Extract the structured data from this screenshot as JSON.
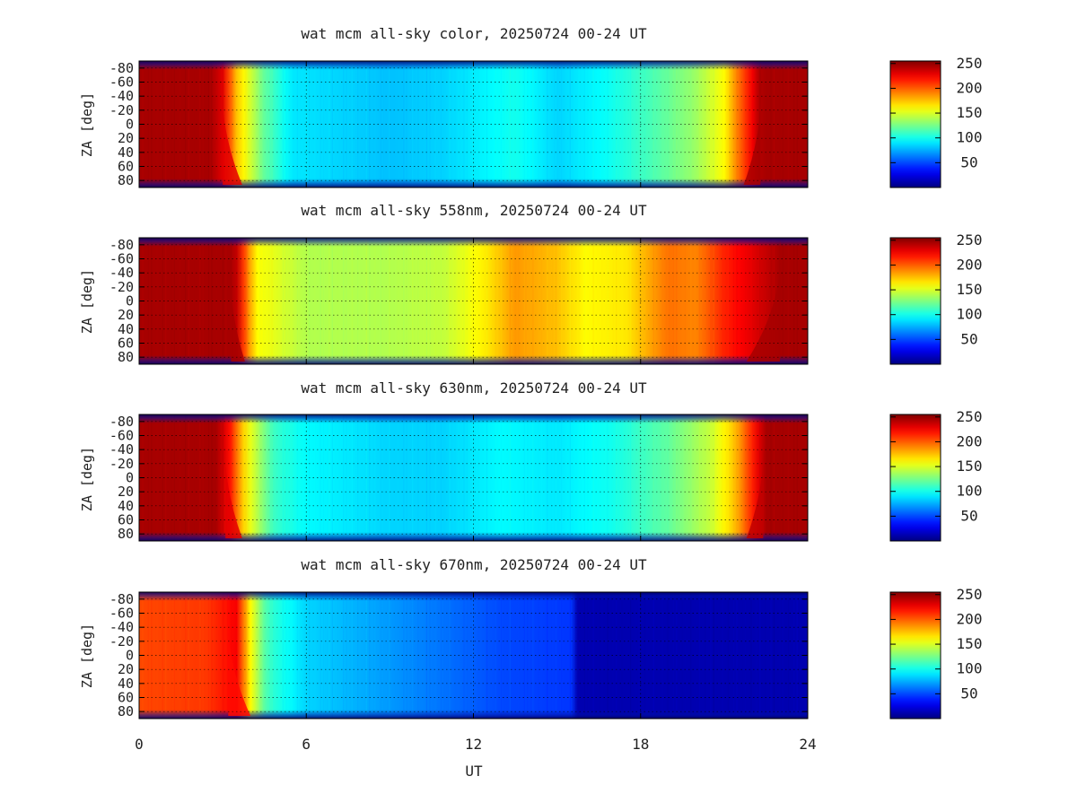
{
  "chart_data": [
    {
      "type": "heatmap",
      "title": "wat mcm all-sky color, 20250724 00-24 UT",
      "ylabel": "ZA [deg]",
      "xlabel": "",
      "xlim": [
        0,
        24
      ],
      "ylim": [
        -90,
        90
      ],
      "yticks": [
        "-80",
        "-60",
        "-40",
        "-20",
        "0",
        "20",
        "40",
        "60",
        "80"
      ],
      "xticks": [],
      "grid": true,
      "colorbar": {
        "ticks": [
          "50",
          "100",
          "150",
          "200",
          "250"
        ],
        "range": [
          0,
          255
        ],
        "colormap": "jet"
      },
      "profile": {
        "ut": [
          0,
          2.6,
          3.0,
          3.5,
          4.5,
          5.5,
          9,
          11,
          13.5,
          15,
          16.5,
          18.5,
          20,
          21,
          21.6,
          22.3,
          24
        ],
        "value": [
          245,
          245,
          230,
          175,
          120,
          90,
          80,
          85,
          100,
          85,
          95,
          115,
          135,
          160,
          200,
          245,
          245
        ]
      },
      "limb_transitions": {
        "dusk_ut": [
          3.0,
          3.7
        ],
        "dawn_ut": [
          21.7,
          22.3
        ]
      }
    },
    {
      "type": "heatmap",
      "title": "wat mcm all-sky 558nm, 20250724 00-24 UT",
      "ylabel": "ZA [deg]",
      "xlabel": "",
      "xlim": [
        0,
        24
      ],
      "ylim": [
        -90,
        90
      ],
      "yticks": [
        "-80",
        "-60",
        "-40",
        "-20",
        "0",
        "20",
        "40",
        "60",
        "80"
      ],
      "xticks": [],
      "grid": true,
      "colorbar": {
        "ticks": [
          "50",
          "100",
          "150",
          "200",
          "250"
        ],
        "range": [
          0,
          255
        ],
        "colormap": "jet"
      },
      "profile": {
        "ut": [
          0,
          3.3,
          3.6,
          3.8,
          4.2,
          6,
          9,
          11,
          12.5,
          13.5,
          15,
          16,
          17.5,
          19,
          20,
          21,
          22,
          23,
          24
        ],
        "value": [
          245,
          245,
          235,
          200,
          160,
          140,
          140,
          145,
          165,
          185,
          175,
          160,
          165,
          195,
          190,
          215,
          230,
          245,
          245
        ]
      },
      "limb_transitions": {
        "dusk_ut": [
          3.3,
          3.8
        ],
        "dawn_ut": [
          21.8,
          23.0
        ]
      }
    },
    {
      "type": "heatmap",
      "title": "wat mcm all-sky 630nm, 20250724 00-24 UT",
      "ylabel": "ZA [deg]",
      "xlabel": "",
      "xlim": [
        0,
        24
      ],
      "ylim": [
        -90,
        90
      ],
      "yticks": [
        "-80",
        "-60",
        "-40",
        "-20",
        "0",
        "20",
        "40",
        "60",
        "80"
      ],
      "xticks": [],
      "grid": true,
      "colorbar": {
        "ticks": [
          "50",
          "100",
          "150",
          "200",
          "250"
        ],
        "range": [
          0,
          255
        ],
        "colormap": "jet"
      },
      "profile": {
        "ut": [
          0,
          2.8,
          3.2,
          3.8,
          4.8,
          6,
          9,
          11,
          13,
          15,
          17,
          19,
          20.5,
          21.4,
          22.0,
          22.5,
          24
        ],
        "value": [
          245,
          245,
          225,
          165,
          110,
          95,
          85,
          85,
          95,
          90,
          100,
          120,
          145,
          175,
          215,
          245,
          245
        ]
      },
      "limb_transitions": {
        "dusk_ut": [
          3.1,
          3.7
        ],
        "dawn_ut": [
          21.8,
          22.4
        ]
      }
    },
    {
      "type": "heatmap",
      "title": "wat mcm all-sky 670nm, 20250724 00-24 UT",
      "ylabel": "ZA [deg]",
      "xlabel": "UT",
      "xlim": [
        0,
        24
      ],
      "ylim": [
        -90,
        90
      ],
      "yticks": [
        "-80",
        "-60",
        "-40",
        "-20",
        "0",
        "20",
        "40",
        "60",
        "80"
      ],
      "xticks": [
        "0",
        "6",
        "12",
        "18",
        "24"
      ],
      "grid": true,
      "colorbar": {
        "ticks": [
          "50",
          "100",
          "150",
          "200",
          "250"
        ],
        "range": [
          0,
          255
        ],
        "colormap": "jet"
      },
      "profile": {
        "ut": [
          0,
          2.5,
          3.5,
          4.0,
          4.6,
          6,
          9,
          11,
          13,
          15.5,
          15.55,
          24
        ],
        "value": [
          205,
          210,
          225,
          160,
          110,
          85,
          70,
          60,
          50,
          45,
          12,
          12
        ],
        "blank_after_ut": 15.55
      },
      "limb_transitions": {
        "dusk_ut": [
          3.2,
          4.0
        ]
      }
    }
  ]
}
